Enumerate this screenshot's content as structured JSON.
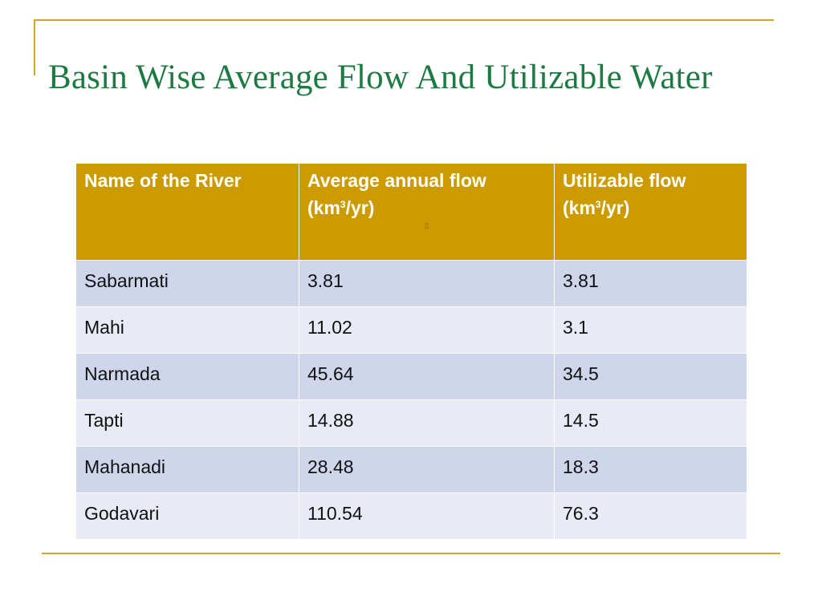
{
  "slide": {
    "title": "Basin Wise Average Flow And Utilizable Water"
  },
  "table": {
    "headers": [
      {
        "main": "Name of the River",
        "unit_pre": "",
        "unit_sup": "",
        "unit_post": ""
      },
      {
        "main": "Average annual flow",
        "unit_pre": "(km",
        "unit_sup": "3",
        "unit_post": "/yr)"
      },
      {
        "main": "Utilizable flow",
        "unit_pre": "(km",
        "unit_sup": "3",
        "unit_post": "/yr)"
      }
    ],
    "rows": [
      {
        "river": "Sabarmati",
        "avg": "3.81",
        "util": "3.81"
      },
      {
        "river": "Mahi",
        "avg": "11.02",
        "util": "3.1"
      },
      {
        "river": "Narmada",
        "avg": "45.64",
        "util": "34.5"
      },
      {
        "river": "Tapti",
        "avg": "14.88",
        "util": "14.5"
      },
      {
        "river": "Mahanadi",
        "avg": "28.48",
        "util": "18.3"
      },
      {
        "river": "Godavari",
        "avg": "110.54",
        "util": "76.3"
      }
    ]
  },
  "colors": {
    "title": "#1e7a43",
    "accent_rule": "#d4a52c",
    "header_bg": "#cc9b00",
    "row_odd_bg": "#cfd5ea",
    "row_even_bg": "#e8ebf5"
  }
}
